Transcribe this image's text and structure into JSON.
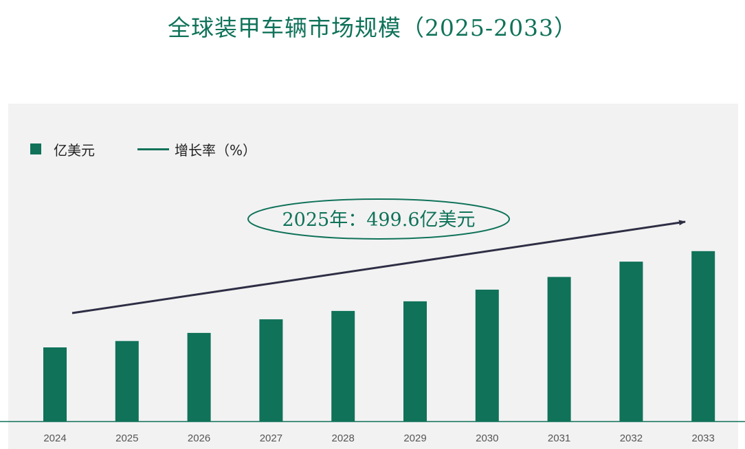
{
  "title": "全球装甲车辆市场规模（2025-2033）",
  "legend": {
    "bar_label": "亿美元",
    "line_label": "增长率（%）"
  },
  "annotation": "2025年：499.6亿美元",
  "colors": {
    "bar": "#0f7259",
    "arrow": "#2e2e45",
    "panel": "#f2f2f2"
  },
  "chart_data": {
    "type": "bar",
    "categories": [
      "2024",
      "2025",
      "2026",
      "2027",
      "2028",
      "2029",
      "2030",
      "2031",
      "2032",
      "2033"
    ],
    "series": [
      {
        "name": "亿美元",
        "values": [
          460,
          499.6,
          550,
          634,
          686,
          746,
          818,
          897,
          992,
          1057
        ]
      }
    ],
    "ylim": [
      0,
      1150
    ],
    "grid": false,
    "legend_position": "top-left",
    "annotations": [
      "2025年：499.6亿美元"
    ]
  }
}
